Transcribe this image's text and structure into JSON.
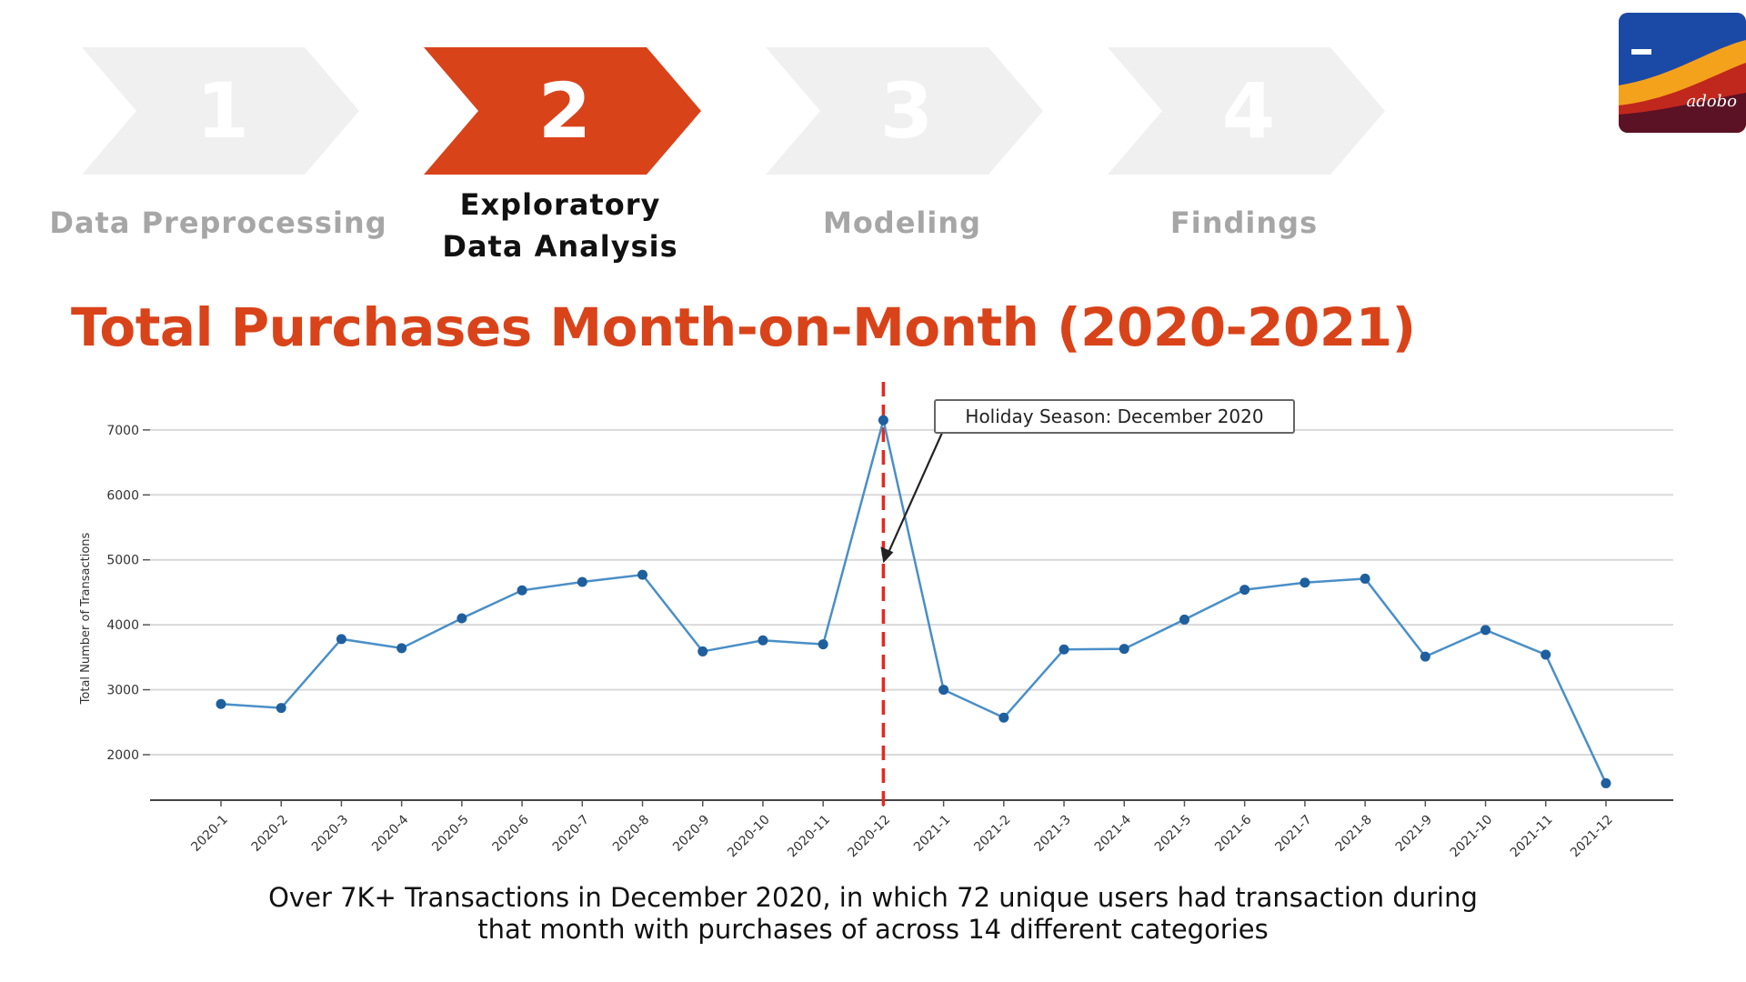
{
  "steps": [
    {
      "number": "1",
      "label": "Data Preprocessing",
      "active": false
    },
    {
      "number": "2",
      "label_line1": "Exploratory",
      "label_line2": "Data Analysis",
      "active": true
    },
    {
      "number": "3",
      "label": "Modeling",
      "active": false
    },
    {
      "number": "4",
      "label": "Findings",
      "active": false
    }
  ],
  "logo": {
    "text": "adobo"
  },
  "page_title": "Total Purchases Month-on-Month (2020-2021)",
  "caption": {
    "line1": "Over 7K+ Transactions in December 2020, in which 72 unique users had transaction during",
    "line2": "that month with purchases of across 14 different categories"
  },
  "colors": {
    "accent": "#d9431a",
    "inactive_step": "#f0f0f0",
    "line": "#4a8fc7",
    "marker_line": "#e8261e"
  },
  "chart_data": {
    "type": "line",
    "title": "",
    "xlabel": "",
    "ylabel": "Total Number of Transactions",
    "categories": [
      "2020-1",
      "2020-2",
      "2020-3",
      "2020-4",
      "2020-5",
      "2020-6",
      "2020-7",
      "2020-8",
      "2020-9",
      "2020-10",
      "2020-11",
      "2020-12",
      "2021-1",
      "2021-2",
      "2021-3",
      "2021-4",
      "2021-5",
      "2021-6",
      "2021-7",
      "2021-8",
      "2021-9",
      "2021-10",
      "2021-11",
      "2021-12"
    ],
    "values": [
      2780,
      2720,
      3780,
      3640,
      4100,
      4530,
      4660,
      4770,
      3590,
      3760,
      3700,
      7150,
      3000,
      2570,
      3620,
      3630,
      4080,
      4540,
      4650,
      4710,
      3510,
      3920,
      3540,
      1560
    ],
    "yticks": [
      2000,
      3000,
      4000,
      5000,
      6000,
      7000
    ],
    "ylim": [
      1300,
      7600
    ],
    "grid": "horizontal",
    "highlight": {
      "category": "2020-12",
      "style": "dashed vertical line"
    },
    "annotation": {
      "text": "Holiday Season: December 2020",
      "arrow_to_category": "2020-12",
      "arrow_to_value": 4950
    }
  }
}
